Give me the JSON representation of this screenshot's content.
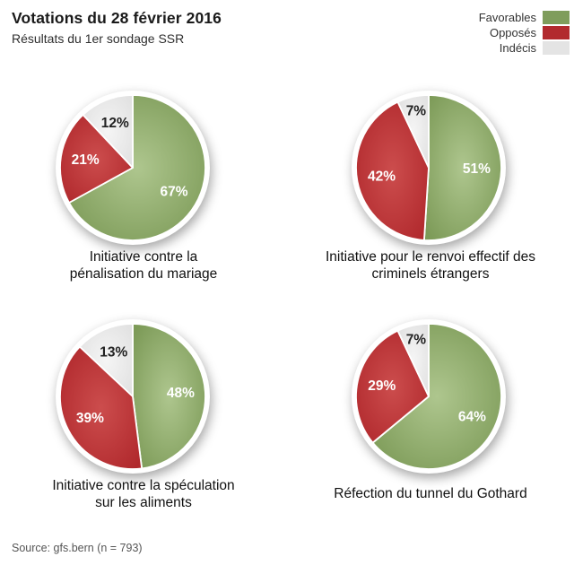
{
  "header": {
    "title": "Votations du 28 février 2016",
    "subtitle": "Résultats du 1er sondage SSR"
  },
  "legend": {
    "items": [
      {
        "label": "Favorables",
        "color": "#7f9d5c"
      },
      {
        "label": "Opposés",
        "color": "#b22a2e"
      },
      {
        "label": "Indécis",
        "color": "#e4e4e4"
      }
    ]
  },
  "pie_style": {
    "segment_colors": [
      {
        "name": "Favorables",
        "center": "#aec68e",
        "edge": "#7c9a57",
        "label_color": "#ffffff"
      },
      {
        "name": "Opposés",
        "center": "#cc4d4d",
        "edge": "#b0282c",
        "label_color": "#ffffff"
      },
      {
        "name": "Indécis",
        "center": "#f5f5f5",
        "edge": "#e1e1e1",
        "label_color": "#222222"
      }
    ]
  },
  "chart_data": [
    {
      "type": "pie",
      "title": "Initiative contre la\npénalisation du mariage",
      "categories": [
        "Favorables",
        "Opposés",
        "Indécis"
      ],
      "values": [
        67,
        21,
        12
      ],
      "labels": [
        "67%",
        "21%",
        "12%"
      ],
      "start_angle_deg": 0,
      "direction": "clockwise"
    },
    {
      "type": "pie",
      "title": "Initiative pour le renvoi effectif des\ncriminels étrangers",
      "categories": [
        "Favorables",
        "Opposés",
        "Indécis"
      ],
      "values": [
        51,
        42,
        7
      ],
      "labels": [
        "51%",
        "42%",
        "7%"
      ],
      "start_angle_deg": 0,
      "direction": "clockwise"
    },
    {
      "type": "pie",
      "title": "Initiative contre la spéculation\nsur les aliments",
      "categories": [
        "Favorables",
        "Opposés",
        "Indécis"
      ],
      "values": [
        48,
        39,
        13
      ],
      "labels": [
        "48%",
        "39%",
        "13%"
      ],
      "start_angle_deg": 0,
      "direction": "clockwise"
    },
    {
      "type": "pie",
      "title": "Réfection du tunnel du Gothard",
      "categories": [
        "Favorables",
        "Opposés",
        "Indécis"
      ],
      "values": [
        64,
        29,
        7
      ],
      "labels": [
        "64%",
        "29%",
        "7%"
      ],
      "start_angle_deg": 0,
      "direction": "clockwise"
    }
  ],
  "source": "Source: gfs.bern (n = 793)"
}
